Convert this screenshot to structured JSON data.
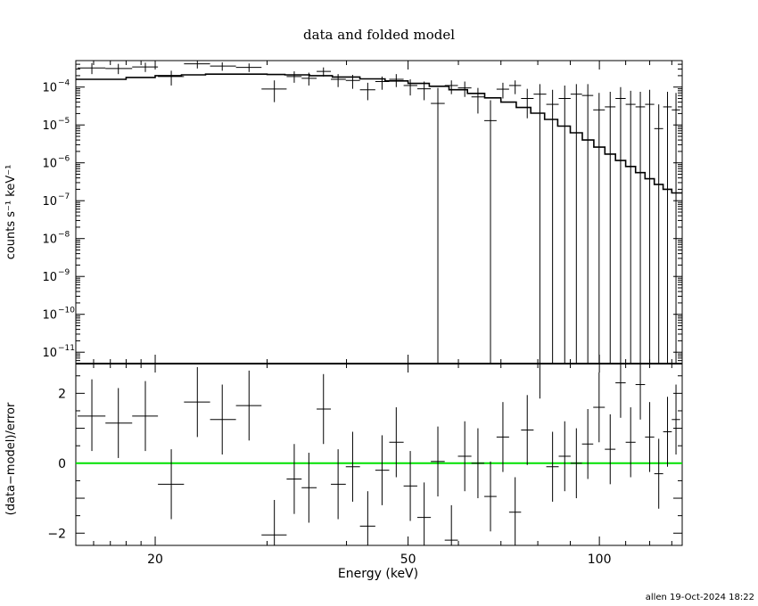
{
  "chart_data": [
    {
      "type": "scatter",
      "title": "data and folded model",
      "ylabel": "counts s⁻¹ keV⁻¹",
      "xlabel": "",
      "x_scale": "log",
      "y_scale": "log",
      "xlim": [
        15,
        135
      ],
      "ylim": [
        5e-12,
        0.0005
      ],
      "y_ticks": [
        {
          "v": 0.0001,
          "m": "10",
          "e": "−4"
        },
        {
          "v": 1e-05,
          "m": "10",
          "e": "−5"
        },
        {
          "v": 1e-06,
          "m": "10",
          "e": "−6"
        },
        {
          "v": 1e-07,
          "m": "10",
          "e": "−7"
        },
        {
          "v": 1e-08,
          "m": "10",
          "e": "−8"
        },
        {
          "v": 1e-09,
          "m": "10",
          "e": "−9"
        },
        {
          "v": 1e-10,
          "m": "10",
          "e": "−10"
        },
        {
          "v": 1e-11,
          "m": "10",
          "e": "−11"
        }
      ],
      "series": [
        {
          "kind": "data",
          "points": [
            {
              "x": 15.9,
              "xl": 15.1,
              "xh": 16.7,
              "y": 0.00032,
              "yl": 0.00022,
              "yh": 0.00043
            },
            {
              "x": 17.5,
              "xl": 16.7,
              "xh": 18.4,
              "y": 0.00031,
              "yl": 0.00022,
              "yh": 0.00041
            },
            {
              "x": 19.3,
              "xl": 18.4,
              "xh": 20.2,
              "y": 0.00034,
              "yl": 0.00025,
              "yh": 0.00044
            },
            {
              "x": 21.2,
              "xl": 20.2,
              "xh": 22.2,
              "y": 0.00019,
              "yl": 0.00011,
              "yh": 0.00027
            },
            {
              "x": 23.3,
              "xl": 22.2,
              "xh": 24.4,
              "y": 0.00041,
              "yl": 0.00031,
              "yh": 0.0005
            },
            {
              "x": 25.5,
              "xl": 24.4,
              "xh": 26.8,
              "y": 0.00036,
              "yl": 0.00027,
              "yh": 0.00045
            },
            {
              "x": 28.1,
              "xl": 26.8,
              "xh": 29.4,
              "y": 0.00033,
              "yl": 0.00025,
              "yh": 0.00042
            },
            {
              "x": 30.8,
              "xl": 29.4,
              "xh": 32.2,
              "y": 8.9e-05,
              "yl": 4e-05,
              "yh": 0.00015
            },
            {
              "x": 33.1,
              "xl": 32.2,
              "xh": 34.0,
              "y": 0.00019,
              "yl": 0.00013,
              "yh": 0.00026
            },
            {
              "x": 34.9,
              "xl": 34.0,
              "xh": 35.9,
              "y": 0.00017,
              "yl": 0.00011,
              "yh": 0.00024
            },
            {
              "x": 36.8,
              "xl": 35.9,
              "xh": 37.8,
              "y": 0.00026,
              "yl": 0.00019,
              "yh": 0.00033
            },
            {
              "x": 38.8,
              "xl": 37.8,
              "xh": 39.9,
              "y": 0.00016,
              "yl": 0.0001,
              "yh": 0.00022
            },
            {
              "x": 40.9,
              "xl": 39.9,
              "xh": 42.0,
              "y": 0.00015,
              "yl": 9e-05,
              "yh": 0.00021
            },
            {
              "x": 43.2,
              "xl": 42.0,
              "xh": 44.4,
              "y": 8.5e-05,
              "yl": 4.5e-05,
              "yh": 0.00013
            },
            {
              "x": 45.5,
              "xl": 44.4,
              "xh": 46.7,
              "y": 0.00014,
              "yl": 8.5e-05,
              "yh": 0.00019
            },
            {
              "x": 47.9,
              "xl": 46.7,
              "xh": 49.2,
              "y": 0.00016,
              "yl": 0.0001,
              "yh": 0.00022
            },
            {
              "x": 50.4,
              "xl": 49.2,
              "xh": 51.7,
              "y": 0.00011,
              "yl": 6e-05,
              "yh": 0.00016
            },
            {
              "x": 53.0,
              "xl": 51.7,
              "xh": 54.3,
              "y": 9e-05,
              "yl": 4.5e-05,
              "yh": 0.00014
            },
            {
              "x": 55.7,
              "xl": 54.3,
              "xh": 57.1,
              "y": 3.7e-05,
              "yl": 5e-12,
              "yh": 9.5e-05
            },
            {
              "x": 58.5,
              "xl": 57.1,
              "xh": 59.9,
              "y": 0.00011,
              "yl": 6.5e-05,
              "yh": 0.00015
            },
            {
              "x": 61.4,
              "xl": 59.9,
              "xh": 62.9,
              "y": 9.5e-05,
              "yl": 5.5e-05,
              "yh": 0.00014
            },
            {
              "x": 64.4,
              "xl": 62.9,
              "xh": 65.9,
              "y": 5.5e-05,
              "yl": 2e-05,
              "yh": 9.5e-05
            },
            {
              "x": 67.4,
              "xl": 65.9,
              "xh": 68.9,
              "y": 1.3e-05,
              "yl": 5e-12,
              "yh": 4.5e-05
            },
            {
              "x": 70.5,
              "xl": 68.9,
              "xh": 72.1,
              "y": 8.8e-05,
              "yl": 5e-05,
              "yh": 0.00013
            },
            {
              "x": 73.7,
              "xl": 72.1,
              "xh": 75.3,
              "y": 0.00011,
              "yl": 6.5e-05,
              "yh": 0.00015
            },
            {
              "x": 77.0,
              "xl": 75.3,
              "xh": 78.8,
              "y": 5e-05,
              "yl": 1.5e-05,
              "yh": 9e-05
            },
            {
              "x": 80.6,
              "xl": 78.8,
              "xh": 82.5,
              "y": 6.5e-05,
              "yl": 5e-12,
              "yh": 0.00012
            },
            {
              "x": 84.4,
              "xl": 82.5,
              "xh": 86.3,
              "y": 3.5e-05,
              "yl": 5e-12,
              "yh": 8.5e-05
            },
            {
              "x": 88.2,
              "xl": 86.3,
              "xh": 90.1,
              "y": 5e-05,
              "yl": 5e-12,
              "yh": 0.00011
            },
            {
              "x": 92.0,
              "xl": 90.1,
              "xh": 93.9,
              "y": 6.5e-05,
              "yl": 5e-12,
              "yh": 0.00012
            },
            {
              "x": 95.9,
              "xl": 93.9,
              "xh": 97.8,
              "y": 6e-05,
              "yl": 5e-12,
              "yh": 0.00012
            },
            {
              "x": 99.9,
              "xl": 97.8,
              "xh": 102.0,
              "y": 2.5e-05,
              "yl": 5e-12,
              "yh": 7e-05
            },
            {
              "x": 104.0,
              "xl": 102.0,
              "xh": 106.0,
              "y": 3e-05,
              "yl": 5e-12,
              "yh": 7.5e-05
            },
            {
              "x": 108.0,
              "xl": 106.0,
              "xh": 110.0,
              "y": 5e-05,
              "yl": 5e-12,
              "yh": 0.0001
            },
            {
              "x": 112.0,
              "xl": 110.0,
              "xh": 114.0,
              "y": 3.5e-05,
              "yl": 5e-12,
              "yh": 8e-05
            },
            {
              "x": 116.0,
              "xl": 114.0,
              "xh": 118.0,
              "y": 3e-05,
              "yl": 5e-12,
              "yh": 7.5e-05
            },
            {
              "x": 120.0,
              "xl": 118.0,
              "xh": 122.0,
              "y": 3.5e-05,
              "yl": 5e-12,
              "yh": 8.5e-05
            },
            {
              "x": 124.0,
              "xl": 122.0,
              "xh": 126.0,
              "y": 8e-06,
              "yl": 5e-12,
              "yh": 3.5e-05
            },
            {
              "x": 128.0,
              "xl": 126.0,
              "xh": 130.0,
              "y": 3e-05,
              "yl": 5e-12,
              "yh": 7.5e-05
            },
            {
              "x": 132.0,
              "xl": 130.0,
              "xh": 134.0,
              "y": 2.5e-05,
              "yl": 5e-12,
              "yh": 7e-05
            }
          ]
        },
        {
          "kind": "model",
          "x": [
            15,
            18,
            20,
            22,
            24,
            26,
            28,
            30,
            32,
            35,
            38,
            42,
            46,
            50,
            54,
            58,
            62,
            66,
            70,
            74,
            78,
            82,
            86,
            90,
            94,
            98,
            102,
            106,
            110,
            114,
            118,
            122,
            126,
            130,
            135
          ],
          "y": [
            0.00016,
            0.00018,
            0.0002,
            0.00021,
            0.00022,
            0.00022,
            0.00022,
            0.000215,
            0.00021,
            0.0002,
            0.000185,
            0.000165,
            0.000145,
            0.000125,
            0.000105,
            8.5e-05,
            6.8e-05,
            5.2e-05,
            4e-05,
            2.9e-05,
            2.05e-05,
            1.4e-05,
            9.3e-06,
            6.2e-06,
            4e-06,
            2.6e-06,
            1.7e-06,
            1.15e-06,
            8e-07,
            5.5e-07,
            3.8e-07,
            2.7e-07,
            2e-07,
            1.6e-07,
            1.3e-07
          ]
        }
      ]
    },
    {
      "type": "scatter",
      "xlabel": "Energy (keV)",
      "ylabel": "(data−model)/error",
      "x_scale": "log",
      "xlim": [
        15,
        135
      ],
      "ylim": [
        -2.35,
        2.85
      ],
      "x_ticks": [
        20,
        50,
        100
      ],
      "x_tick_labels": [
        "20",
        "50",
        "100"
      ],
      "y_ticks": [
        2,
        0,
        -2
      ],
      "y_tick_labels": [
        "2",
        "0",
        "−2"
      ],
      "zero_line_color": "#00e000",
      "points": [
        {
          "x": 15.9,
          "xl": 15.1,
          "xh": 16.7,
          "y": 1.35,
          "yl": 0.35,
          "yh": 2.4
        },
        {
          "x": 17.5,
          "xl": 16.7,
          "xh": 18.4,
          "y": 1.15,
          "yl": 0.15,
          "yh": 2.15
        },
        {
          "x": 19.3,
          "xl": 18.4,
          "xh": 20.2,
          "y": 1.35,
          "yl": 0.35,
          "yh": 2.35
        },
        {
          "x": 21.2,
          "xl": 20.2,
          "xh": 22.2,
          "y": -0.6,
          "yl": -1.6,
          "yh": 0.4
        },
        {
          "x": 23.3,
          "xl": 22.2,
          "xh": 24.4,
          "y": 1.75,
          "yl": 0.75,
          "yh": 2.75
        },
        {
          "x": 25.5,
          "xl": 24.4,
          "xh": 26.8,
          "y": 1.25,
          "yl": 0.25,
          "yh": 2.25
        },
        {
          "x": 28.1,
          "xl": 26.8,
          "xh": 29.4,
          "y": 1.65,
          "yl": 0.65,
          "yh": 2.65
        },
        {
          "x": 30.8,
          "xl": 29.4,
          "xh": 32.2,
          "y": -2.05,
          "yl": -2.35,
          "yh": -1.05
        },
        {
          "x": 33.1,
          "xl": 32.2,
          "xh": 34.0,
          "y": -0.45,
          "yl": -1.45,
          "yh": 0.55
        },
        {
          "x": 34.9,
          "xl": 34.0,
          "xh": 35.9,
          "y": -0.7,
          "yl": -1.7,
          "yh": 0.3
        },
        {
          "x": 36.8,
          "xl": 35.9,
          "xh": 37.8,
          "y": 1.55,
          "yl": 0.55,
          "yh": 2.55
        },
        {
          "x": 38.8,
          "xl": 37.8,
          "xh": 39.9,
          "y": -0.6,
          "yl": -1.6,
          "yh": 0.4
        },
        {
          "x": 40.9,
          "xl": 39.9,
          "xh": 42.0,
          "y": -0.1,
          "yl": -1.1,
          "yh": 0.9
        },
        {
          "x": 43.2,
          "xl": 42.0,
          "xh": 44.4,
          "y": -1.8,
          "yl": -2.35,
          "yh": -0.8
        },
        {
          "x": 45.5,
          "xl": 44.4,
          "xh": 46.7,
          "y": -0.2,
          "yl": -1.2,
          "yh": 0.8
        },
        {
          "x": 47.9,
          "xl": 46.7,
          "xh": 49.2,
          "y": 0.6,
          "yl": -0.4,
          "yh": 1.6
        },
        {
          "x": 50.4,
          "xl": 49.2,
          "xh": 51.7,
          "y": -0.65,
          "yl": -1.65,
          "yh": 0.35
        },
        {
          "x": 53.0,
          "xl": 51.7,
          "xh": 54.3,
          "y": -1.55,
          "yl": -2.35,
          "yh": -0.55
        },
        {
          "x": 55.7,
          "xl": 54.3,
          "xh": 57.1,
          "y": 0.05,
          "yl": -0.95,
          "yh": 1.05
        },
        {
          "x": 58.5,
          "xl": 57.1,
          "xh": 59.9,
          "y": -2.2,
          "yl": -2.35,
          "yh": -1.2
        },
        {
          "x": 61.4,
          "xl": 59.9,
          "xh": 62.9,
          "y": 0.2,
          "yl": -0.8,
          "yh": 1.2
        },
        {
          "x": 64.4,
          "xl": 62.9,
          "xh": 65.9,
          "y": 0.0,
          "yl": -1.0,
          "yh": 1.0
        },
        {
          "x": 67.4,
          "xl": 65.9,
          "xh": 68.9,
          "y": -0.95,
          "yl": -1.95,
          "yh": 0.05
        },
        {
          "x": 70.5,
          "xl": 68.9,
          "xh": 72.1,
          "y": 0.75,
          "yl": -0.25,
          "yh": 1.75
        },
        {
          "x": 73.7,
          "xl": 72.1,
          "xh": 75.3,
          "y": -1.4,
          "yl": -2.35,
          "yh": -0.4
        },
        {
          "x": 77.0,
          "xl": 75.3,
          "xh": 78.8,
          "y": 0.95,
          "yl": -0.05,
          "yh": 1.95
        },
        {
          "x": 80.6,
          "xl": 78.8,
          "xh": 82.5,
          "y": 2.85,
          "yl": 1.85,
          "yh": 2.85
        },
        {
          "x": 84.4,
          "xl": 82.5,
          "xh": 86.3,
          "y": -0.1,
          "yl": -1.1,
          "yh": 0.9
        },
        {
          "x": 88.2,
          "xl": 86.3,
          "xh": 90.1,
          "y": 0.2,
          "yl": -0.8,
          "yh": 1.2
        },
        {
          "x": 92.0,
          "xl": 90.1,
          "xh": 93.9,
          "y": 0.0,
          "yl": -1.0,
          "yh": 1.0
        },
        {
          "x": 95.9,
          "xl": 93.9,
          "xh": 97.8,
          "y": 0.55,
          "yl": -0.45,
          "yh": 1.55
        },
        {
          "x": 99.9,
          "xl": 97.8,
          "xh": 102.0,
          "y": 1.6,
          "yl": 0.6,
          "yh": 2.6
        },
        {
          "x": 104.0,
          "xl": 102.0,
          "xh": 106.0,
          "y": 0.4,
          "yl": -0.6,
          "yh": 1.4
        },
        {
          "x": 108.0,
          "xl": 106.0,
          "xh": 110.0,
          "y": 2.3,
          "yl": 1.3,
          "yh": 2.85
        },
        {
          "x": 112.0,
          "xl": 110.0,
          "xh": 114.0,
          "y": 0.6,
          "yl": -0.4,
          "yh": 1.6
        },
        {
          "x": 116.0,
          "xl": 114.0,
          "xh": 118.0,
          "y": 2.25,
          "yl": 1.25,
          "yh": 2.85
        },
        {
          "x": 120.0,
          "xl": 118.0,
          "xh": 122.0,
          "y": 0.75,
          "yl": -0.25,
          "yh": 1.75
        },
        {
          "x": 124.0,
          "xl": 122.0,
          "xh": 126.0,
          "y": -0.3,
          "yl": -1.3,
          "yh": 0.7
        },
        {
          "x": 128.0,
          "xl": 126.0,
          "xh": 130.0,
          "y": 0.9,
          "yl": -0.1,
          "yh": 1.9
        },
        {
          "x": 132.0,
          "xl": 130.0,
          "xh": 134.0,
          "y": 1.25,
          "yl": 0.25,
          "yh": 2.25
        }
      ]
    }
  ],
  "footer": {
    "stamp": "allen 19-Oct-2024 18:22"
  }
}
